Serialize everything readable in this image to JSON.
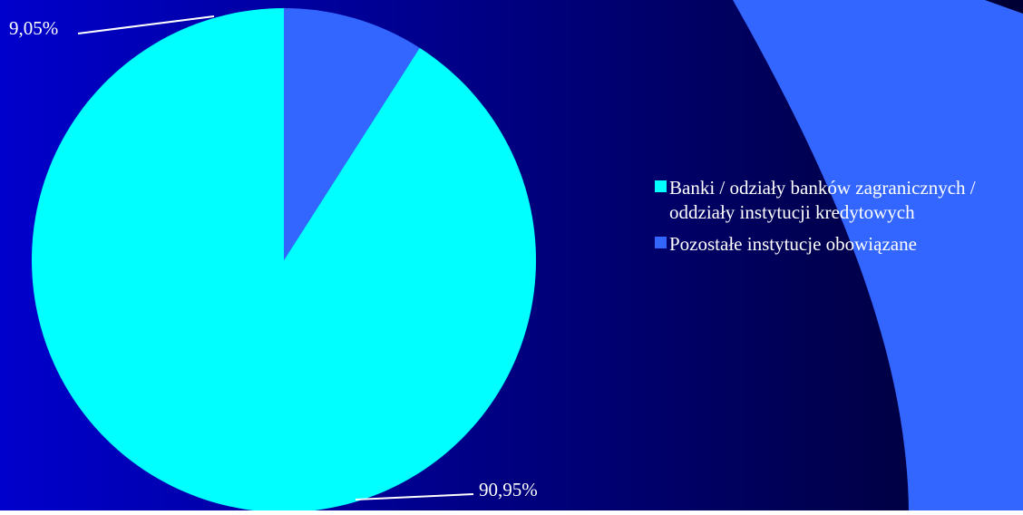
{
  "colors": {
    "background_left": "#0000cc",
    "background_right": "#000033",
    "decor_arc": "#3366ff"
  },
  "chart_data": {
    "type": "pie",
    "categories": [
      "Banki / odziały banków zagranicznych / oddziały instytucji kredytowych",
      "Pozostałe instytucje obowiązane"
    ],
    "values": [
      90.95,
      9.05
    ],
    "data_labels": [
      "90,95%",
      "9,05%"
    ],
    "colors": [
      "#00ffff",
      "#3366ff"
    ],
    "legend_position": "right",
    "title": "",
    "unit": "%"
  }
}
